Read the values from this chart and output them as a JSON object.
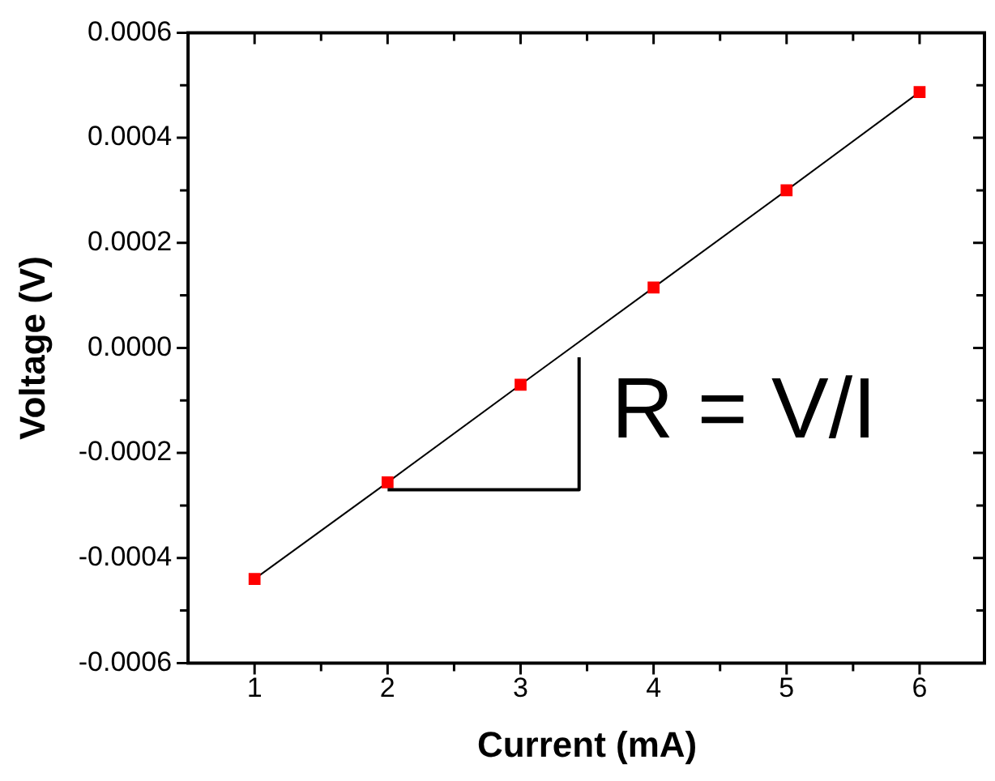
{
  "chart_data": {
    "type": "line",
    "xlabel": "Current (mA)",
    "ylabel": "Voltage (V)",
    "x": [
      1,
      2,
      3,
      4,
      5,
      6
    ],
    "series": [
      {
        "color": "#ff0000",
        "values": [
          -0.00044,
          -0.000256,
          -7e-05,
          0.000115,
          0.0003,
          0.000487
        ]
      }
    ],
    "marker": "square",
    "line_style": "solid",
    "grid": false,
    "legend": false,
    "xlim": [
      0.5,
      6.5
    ],
    "xticks": [
      1,
      {
        "value": 1.5,
        "label": null
      },
      2,
      {
        "value": 2.5,
        "label": null
      },
      3,
      {
        "value": 3.5,
        "label": null
      },
      4,
      {
        "value": 4.5,
        "label": null
      },
      5,
      {
        "value": 5.5,
        "label": null
      },
      6
    ],
    "ylim": [
      -0.0006,
      0.0006
    ],
    "yticks": [
      -0.0006,
      {
        "value": -0.0005,
        "label": null
      },
      -0.0004,
      {
        "value": -0.0003,
        "label": null
      },
      -0.0002,
      {
        "value": -0.0001,
        "label": null
      },
      {
        "value": 0,
        "label": "0.0000"
      },
      {
        "value": 0.0001,
        "label": null
      },
      0.0002,
      {
        "value": 0.0003,
        "label": null
      },
      0.0004,
      {
        "value": 0.0005,
        "label": null
      },
      0.0006
    ],
    "annotations": [
      {
        "text": "R = V/I",
        "x": 2,
        "y": -0.00027
      }
    ]
  }
}
